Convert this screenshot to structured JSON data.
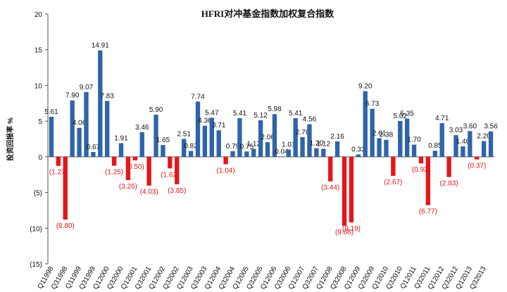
{
  "chart_data": {
    "type": "bar",
    "title": "HFRI对冲基金指数加权复合指数",
    "y_label": "投资回报率 %",
    "categories": [
      "Q11998",
      null,
      "Q31998",
      null,
      "Q11999",
      null,
      "Q31999",
      null,
      "Q12000",
      null,
      "Q32000",
      null,
      "Q12001",
      null,
      "Q32001",
      null,
      "Q12002",
      null,
      "Q32002",
      null,
      "Q12003",
      null,
      "Q32003",
      null,
      "Q12004",
      null,
      "Q32004",
      null,
      "Q12005",
      null,
      "Q32005",
      null,
      "Q12006",
      null,
      "Q32006",
      null,
      "Q12007",
      null,
      "Q32007",
      null,
      "Q12008",
      null,
      "Q32008",
      null,
      "Q12009",
      null,
      "Q32009",
      null,
      "Q12010",
      null,
      "Q32010",
      null,
      "Q12011",
      null,
      "Q32011",
      null,
      "Q12012",
      null,
      "Q32012",
      null,
      "Q12013",
      null,
      "Q32013",
      null
    ],
    "values": [
      5.61,
      -1.27,
      -8.8,
      7.9,
      4.06,
      9.07,
      0.67,
      14.91,
      7.83,
      -1.25,
      1.91,
      -3.26,
      -0.5,
      3.46,
      -4.03,
      5.9,
      1.65,
      -1.62,
      -3.85,
      2.51,
      0.82,
      7.74,
      4.36,
      5.47,
      3.71,
      -1.04,
      0.79,
      5.41,
      0.75,
      1.12,
      5.12,
      2.06,
      5.98,
      0.04,
      1.01,
      5.41,
      2.76,
      4.56,
      1.2,
      1.12,
      -3.44,
      2.16,
      -9.66,
      -9.19,
      0.33,
      9.2,
      6.73,
      2.61,
      2.38,
      -2.67,
      5.02,
      5.35,
      1.7,
      -0.92,
      -6.77,
      0.85,
      4.71,
      -2.83,
      3.03,
      1.46,
      3.6,
      -0.37,
      2.2,
      3.56
    ],
    "value_labels": [
      "5.61",
      "(1.27)",
      "(8.80)",
      "7.90",
      "4.06",
      "9.07",
      "0.67",
      "14.91",
      "7.83",
      "(1.25)",
      "1.91",
      "(3.26)",
      "(0.50)",
      "3.46",
      "(4.03)",
      "5.90",
      "1.65",
      "(1.62)",
      "(3.85)",
      "2.51",
      "0.82",
      "7.74",
      "4.36",
      "5.47",
      "3.71",
      "(1.04)",
      "0.79",
      "5.41",
      "0.75",
      "1.12",
      "5.12",
      "2.06",
      "5.98",
      "0.04",
      "1.01",
      "5.41",
      "2.76",
      "4.56",
      "1.20",
      "1.12",
      "(3.44)",
      "2.16",
      "(9.66)",
      "(9.19)",
      "0.33",
      "9.20",
      "6.73",
      "2.61",
      "2.38",
      "(2.67)",
      "5.02",
      "5.35",
      "1.70",
      "(0.92)",
      "(6.77)",
      "0.85",
      "4.71",
      "(2.83)",
      "3.03",
      "1.46",
      "3.60",
      "(0.37)",
      "2.20",
      "3.56"
    ],
    "color": "#2f64a8",
    "negative_color": "#e3161b",
    "ylim": [
      -15,
      20
    ],
    "yticks": [
      {
        "value": -15,
        "label": "(15)"
      },
      {
        "value": -10,
        "label": "(10)"
      },
      {
        "value": -5,
        "label": "(5)"
      },
      0,
      5,
      10,
      15,
      20
    ]
  }
}
